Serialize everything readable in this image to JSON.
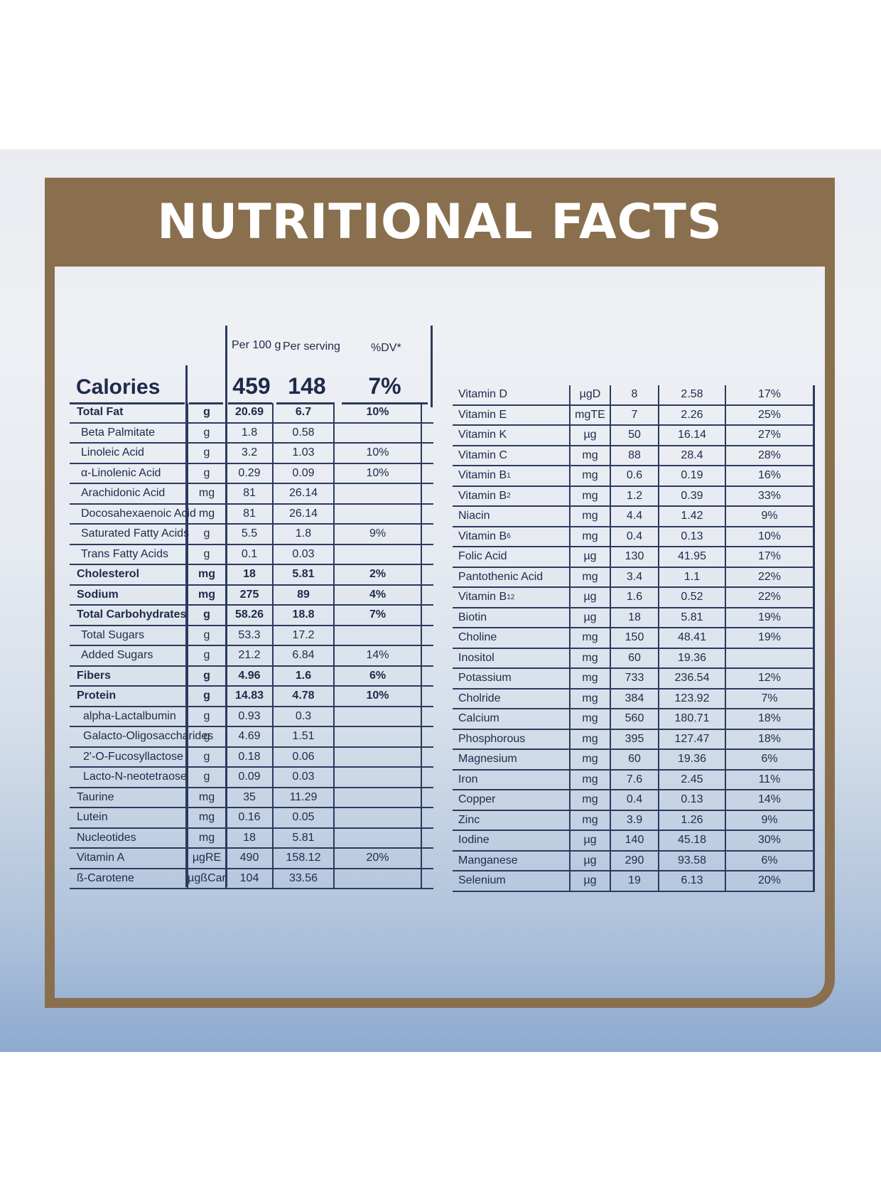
{
  "title": "NUTRITIONAL FACTS",
  "headers": {
    "per100": "Per 100 g",
    "perServing": "Per serving",
    "dv": "%DV*"
  },
  "calories": {
    "label": "Calories",
    "per100": "459",
    "perServing": "148",
    "dv": "7%"
  },
  "left_rows": [
    {
      "name": "Total Fat",
      "unit": "g",
      "per100": "20.69",
      "perServing": "6.7",
      "dv": "10%",
      "bold": true,
      "indent": 0
    },
    {
      "name": "Beta Palmitate",
      "unit": "g",
      "per100": "1.8",
      "perServing": "0.58",
      "dv": "",
      "indent": 1
    },
    {
      "name": "Linoleic Acid",
      "unit": "g",
      "per100": "3.2",
      "perServing": "1.03",
      "dv": "10%",
      "indent": 1
    },
    {
      "name": "α-Linolenic Acid",
      "unit": "g",
      "per100": "0.29",
      "perServing": "0.09",
      "dv": "10%",
      "indent": 1
    },
    {
      "name": "Arachidonic Acid",
      "unit": "mg",
      "per100": "81",
      "perServing": "26.14",
      "dv": "",
      "indent": 1
    },
    {
      "name": "Docosahexaenoic Acid",
      "unit": "mg",
      "per100": "81",
      "perServing": "26.14",
      "dv": "",
      "indent": 1
    },
    {
      "name": "Saturated Fatty Acids",
      "unit": "g",
      "per100": "5.5",
      "perServing": "1.8",
      "dv": "9%",
      "indent": 1
    },
    {
      "name": "Trans Fatty Acids",
      "unit": "g",
      "per100": "0.1",
      "perServing": "0.03",
      "dv": "",
      "indent": 1
    },
    {
      "name": "Cholesterol",
      "unit": "mg",
      "per100": "18",
      "perServing": "5.81",
      "dv": "2%",
      "bold": true,
      "indent": 0
    },
    {
      "name": "Sodium",
      "unit": "mg",
      "per100": "275",
      "perServing": "89",
      "dv": "4%",
      "bold": true,
      "indent": 0
    },
    {
      "name": "Total Carbohydrates",
      "unit": "g",
      "per100": "58.26",
      "perServing": "18.8",
      "dv": "7%",
      "bold": true,
      "indent": 0
    },
    {
      "name": "Total Sugars",
      "unit": "g",
      "per100": "53.3",
      "perServing": "17.2",
      "dv": "",
      "indent": 1
    },
    {
      "name": "Added Sugars",
      "unit": "g",
      "per100": "21.2",
      "perServing": "6.84",
      "dv": "14%",
      "indent": 1
    },
    {
      "name": "Fibers",
      "unit": "g",
      "per100": "4.96",
      "perServing": "1.6",
      "dv": "6%",
      "bold": true,
      "indent": 0
    },
    {
      "name": "Protein",
      "unit": "g",
      "per100": "14.83",
      "perServing": "4.78",
      "dv": "10%",
      "bold": true,
      "indent": 0
    },
    {
      "name": "alpha-Lactalbumin",
      "unit": "g",
      "per100": "0.93",
      "perServing": "0.3",
      "dv": "",
      "indent": 2
    },
    {
      "name": "Galacto-Oligosaccharides",
      "unit": "g",
      "per100": "4.69",
      "perServing": "1.51",
      "dv": "",
      "indent": 2
    },
    {
      "name": "2'-O-Fucosyllactose",
      "unit": "g",
      "per100": "0.18",
      "perServing": "0.06",
      "dv": "",
      "indent": 2
    },
    {
      "name": "Lacto-N-neotetraose",
      "unit": "g",
      "per100": "0.09",
      "perServing": "0.03",
      "dv": "",
      "indent": 2
    },
    {
      "name": "Taurine",
      "unit": "mg",
      "per100": "35",
      "perServing": "11.29",
      "dv": "",
      "indent": 0
    },
    {
      "name": "Lutein",
      "unit": "mg",
      "per100": "0.16",
      "perServing": "0.05",
      "dv": "",
      "indent": 0
    },
    {
      "name": "Nucleotides",
      "unit": "mg",
      "per100": "18",
      "perServing": "5.81",
      "dv": "",
      "indent": 0
    },
    {
      "name": "Vitamin A",
      "unit": "µgRE",
      "per100": "490",
      "perServing": "158.12",
      "dv": "20%",
      "indent": 0
    },
    {
      "name": "ß-Carotene",
      "unit": "µgßCar",
      "per100": "104",
      "perServing": "33.56",
      "dv": "",
      "indent": 0
    }
  ],
  "right_rows": [
    {
      "name": "Vitamin D",
      "unit": "µgD",
      "per100": "8",
      "perServing": "2.58",
      "dv": "17%"
    },
    {
      "name": "Vitamin E",
      "unit": "mgTE",
      "per100": "7",
      "perServing": "2.26",
      "dv": "25%"
    },
    {
      "name": "Vitamin K",
      "unit": "µg",
      "per100": "50",
      "perServing": "16.14",
      "dv": "27%"
    },
    {
      "name": "Vitamin C",
      "unit": "mg",
      "per100": "88",
      "perServing": "28.4",
      "dv": "28%"
    },
    {
      "name": "Vitamin B",
      "sub": "1",
      "unit": "mg",
      "per100": "0.6",
      "perServing": "0.19",
      "dv": "16%"
    },
    {
      "name": "Vitamin B",
      "sub": "2",
      "unit": "mg",
      "per100": "1.2",
      "perServing": "0.39",
      "dv": "33%"
    },
    {
      "name": "Niacin",
      "unit": "mg",
      "per100": "4.4",
      "perServing": "1.42",
      "dv": "9%"
    },
    {
      "name": "Vitamin B",
      "sub": "6",
      "unit": "mg",
      "per100": "0.4",
      "perServing": "0.13",
      "dv": "10%"
    },
    {
      "name": "Folic Acid",
      "unit": "µg",
      "per100": "130",
      "perServing": "41.95",
      "dv": "17%"
    },
    {
      "name": "Pantothenic Acid",
      "unit": "mg",
      "per100": "3.4",
      "perServing": "1.1",
      "dv": "22%"
    },
    {
      "name": "Vitamin B",
      "sub": "12",
      "unit": "µg",
      "per100": "1.6",
      "perServing": "0.52",
      "dv": "22%"
    },
    {
      "name": "Biotin",
      "unit": "µg",
      "per100": "18",
      "perServing": "5.81",
      "dv": "19%"
    },
    {
      "name": "Choline",
      "unit": "mg",
      "per100": "150",
      "perServing": "48.41",
      "dv": "19%"
    },
    {
      "name": "Inositol",
      "unit": "mg",
      "per100": "60",
      "perServing": "19.36",
      "dv": ""
    },
    {
      "name": "Potassium",
      "unit": "mg",
      "per100": "733",
      "perServing": "236.54",
      "dv": "12%"
    },
    {
      "name": "Cholride",
      "unit": "mg",
      "per100": "384",
      "perServing": "123.92",
      "dv": "7%"
    },
    {
      "name": "Calcium",
      "unit": "mg",
      "per100": "560",
      "perServing": "180.71",
      "dv": "18%"
    },
    {
      "name": "Phosphorous",
      "unit": "mg",
      "per100": "395",
      "perServing": "127.47",
      "dv": "18%"
    },
    {
      "name": "Magnesium",
      "unit": "mg",
      "per100": "60",
      "perServing": "19.36",
      "dv": "6%"
    },
    {
      "name": "Iron",
      "unit": "mg",
      "per100": "7.6",
      "perServing": "2.45",
      "dv": "11%"
    },
    {
      "name": "Copper",
      "unit": "mg",
      "per100": "0.4",
      "perServing": "0.13",
      "dv": "14%"
    },
    {
      "name": "Zinc",
      "unit": "mg",
      "per100": "3.9",
      "perServing": "1.26",
      "dv": "9%"
    },
    {
      "name": "Iodine",
      "unit": "µg",
      "per100": "140",
      "perServing": "45.18",
      "dv": "30%"
    },
    {
      "name": "Manganese",
      "unit": "µg",
      "per100": "290",
      "perServing": "93.58",
      "dv": "6%"
    },
    {
      "name": "Selenium",
      "unit": "µg",
      "per100": "19",
      "perServing": "6.13",
      "dv": "20%"
    }
  ],
  "colors": {
    "brand_brown": "#8a6f4e",
    "text_navy": "#1f2a4a"
  }
}
